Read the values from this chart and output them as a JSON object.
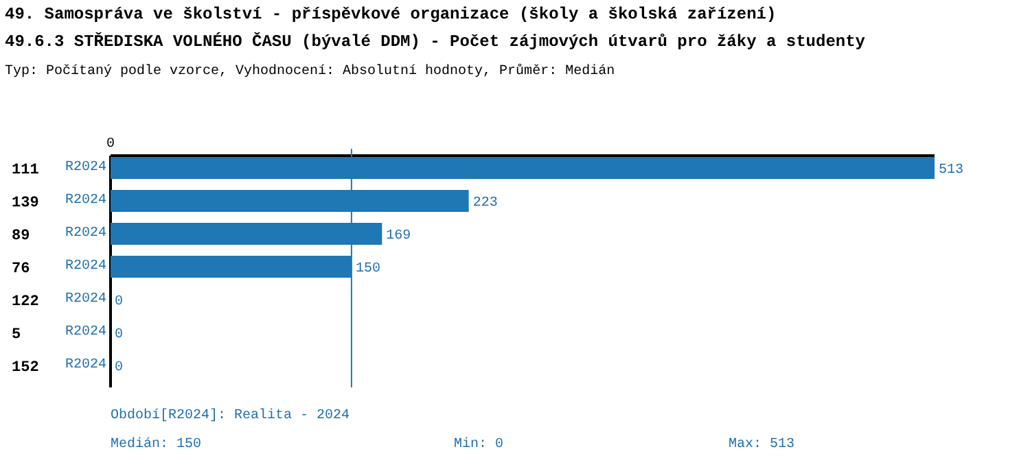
{
  "chart_data": {
    "type": "bar",
    "orientation": "horizontal",
    "title": "49. Samospráva ve školství - příspěvkové organizace (školy a školská zařízení)\n49.6.3 STŘEDISKA VOLNÉHO ČASU (bývalé DDM) - Počet zájmových útvarů pro žáky a studenty",
    "subtitle": "Typ: Počítaný podle vzorce, Vyhodnocení: Absolutní hodnoty, Průměr: Medián",
    "categories": [
      "111",
      "139",
      "89",
      "76",
      "122",
      "5",
      "152"
    ],
    "series": [
      {
        "name": "R2024",
        "color": "#1f77b4",
        "values": [
          513,
          223,
          169,
          150,
          0,
          0,
          0
        ]
      }
    ],
    "data_labels": true,
    "ref_lines": [
      {
        "axis": "x",
        "value": 150,
        "color": "#1f77b4"
      }
    ],
    "annotations": [
      "0",
      "Období[R2024]: Realita - 2024",
      "Medián: 150",
      "Min: 0",
      "Max: 513"
    ]
  }
}
